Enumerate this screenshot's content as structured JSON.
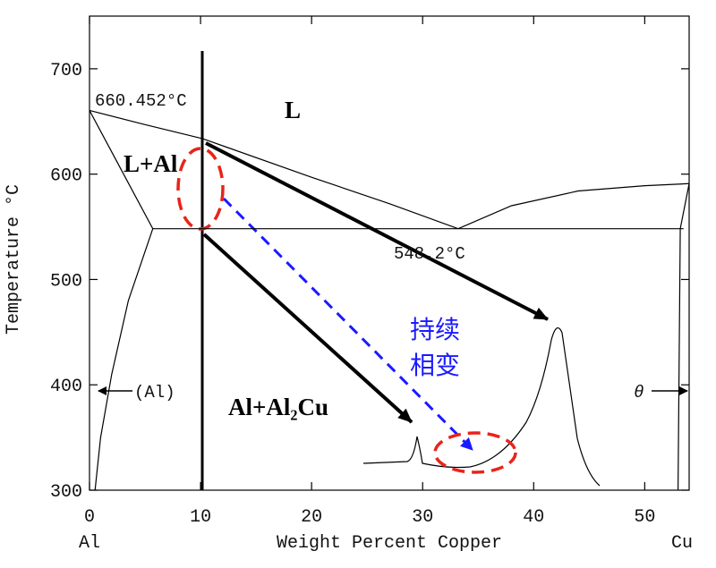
{
  "chart_data": {
    "type": "line",
    "x_label": "Weight Percent Copper",
    "y_label": "Temperature °C",
    "x_end_labels": [
      "Al",
      "Cu"
    ],
    "xlim": [
      0,
      54
    ],
    "ylim": [
      300,
      750
    ],
    "xticks": [
      0,
      10,
      20,
      30,
      40,
      50
    ],
    "yticks": [
      300,
      400,
      500,
      600,
      700
    ],
    "series": [
      {
        "color": "#000000",
        "x": [
          0,
          5,
          10.2,
          20,
          27,
          33.2
        ],
        "values": [
          660.452,
          647,
          633.6,
          597,
          572,
          548.2
        ]
      },
      {
        "color": "#000000",
        "x": [
          33.2,
          38,
          44,
          50,
          54
        ],
        "values": [
          548.2,
          570,
          584,
          589,
          591
        ]
      },
      {
        "color": "#000000",
        "x": [
          0,
          5.7
        ],
        "values": [
          660.452,
          548.2
        ]
      },
      {
        "color": "#000000",
        "x": [
          5.7,
          3.5,
          2,
          1,
          0.5
        ],
        "values": [
          548.2,
          480,
          410,
          350,
          300
        ]
      },
      {
        "color": "#000000",
        "x": [
          5.7,
          53.5
        ],
        "values": [
          548.2,
          548.2
        ]
      },
      {
        "color": "#000000",
        "x": [
          54,
          53.2,
          53
        ],
        "values": [
          591,
          548.2,
          300
        ]
      }
    ],
    "annotations": [
      "660.452°C",
      "548.2°C",
      "L",
      "L+Al",
      "Al+Al₂Cu",
      "持续",
      "相变",
      "(Al)",
      "θ"
    ]
  }
}
